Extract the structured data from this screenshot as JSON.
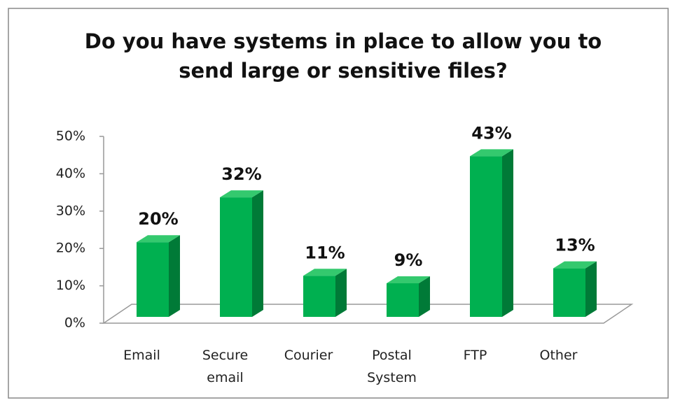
{
  "chart_data": {
    "type": "bar3d",
    "title": "Do you have systems in place to allow you to send large or sensitive files?",
    "categories": [
      "Email",
      "Secure email",
      "Courier",
      "Postal System",
      "FTP",
      "Other"
    ],
    "values": [
      20,
      32,
      11,
      9,
      43,
      13
    ],
    "value_labels": [
      "20%",
      "32%",
      "11%",
      "9%",
      "43%",
      "13%"
    ],
    "color": "#00b050",
    "ylim": [
      0,
      50
    ],
    "yticks": [
      {
        "value": 0,
        "label": "0%"
      },
      {
        "value": 10,
        "label": "10%"
      },
      {
        "value": 20,
        "label": "20%"
      },
      {
        "value": 30,
        "label": "30%"
      },
      {
        "value": 40,
        "label": "40%"
      },
      {
        "value": 50,
        "label": "50%"
      }
    ],
    "grid": false
  }
}
